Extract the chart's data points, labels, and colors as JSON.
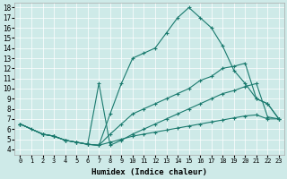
{
  "xlabel": "Humidex (Indice chaleur)",
  "bg_color": "#ceeae8",
  "line_color": "#1a7a6e",
  "xlim": [
    -0.5,
    23.5
  ],
  "ylim": [
    3.5,
    18.5
  ],
  "xticks": [
    0,
    1,
    2,
    3,
    4,
    5,
    6,
    7,
    8,
    9,
    10,
    11,
    12,
    13,
    14,
    15,
    16,
    17,
    18,
    19,
    20,
    21,
    22,
    23
  ],
  "yticks": [
    4,
    5,
    6,
    7,
    8,
    9,
    10,
    11,
    12,
    13,
    14,
    15,
    16,
    17,
    18
  ],
  "lines": [
    {
      "x": [
        0,
        1,
        2,
        3,
        4,
        5,
        6,
        7,
        8,
        9,
        10,
        11,
        12,
        13,
        14,
        15,
        16,
        17,
        18,
        19,
        20,
        21,
        22,
        23
      ],
      "y": [
        6.5,
        6.0,
        5.5,
        5.3,
        4.9,
        4.7,
        4.5,
        4.4,
        7.5,
        10.5,
        13.0,
        13.5,
        14.0,
        15.5,
        17.0,
        18.0,
        17.0,
        16.0,
        14.2,
        11.8,
        10.5,
        9.0,
        8.5,
        7.0
      ]
    },
    {
      "x": [
        0,
        2,
        3,
        4,
        5,
        6,
        7,
        8,
        9,
        10,
        11,
        12,
        13,
        14,
        15,
        16,
        17,
        18,
        19,
        20,
        21,
        22,
        23
      ],
      "y": [
        6.5,
        5.5,
        5.3,
        4.9,
        4.7,
        4.5,
        10.5,
        4.4,
        4.9,
        5.5,
        6.0,
        6.5,
        7.0,
        7.5,
        8.0,
        8.5,
        9.0,
        9.5,
        9.8,
        10.2,
        10.5,
        7.2,
        7.0
      ]
    },
    {
      "x": [
        0,
        2,
        3,
        4,
        5,
        6,
        7,
        8,
        9,
        10,
        11,
        12,
        13,
        14,
        15,
        16,
        17,
        18,
        19,
        20,
        21,
        22,
        23
      ],
      "y": [
        6.5,
        5.5,
        5.3,
        4.9,
        4.7,
        4.5,
        4.4,
        5.5,
        6.5,
        7.5,
        8.0,
        8.5,
        9.0,
        9.5,
        10.0,
        10.8,
        11.2,
        12.0,
        12.2,
        12.5,
        9.0,
        8.5,
        7.0
      ]
    },
    {
      "x": [
        0,
        2,
        3,
        4,
        5,
        6,
        7,
        8,
        9,
        10,
        11,
        12,
        13,
        14,
        15,
        16,
        17,
        18,
        19,
        20,
        21,
        22,
        23
      ],
      "y": [
        6.5,
        5.5,
        5.3,
        4.9,
        4.7,
        4.5,
        4.4,
        4.7,
        5.0,
        5.3,
        5.5,
        5.7,
        5.9,
        6.1,
        6.3,
        6.5,
        6.7,
        6.9,
        7.1,
        7.3,
        7.4,
        7.0,
        7.0
      ]
    }
  ]
}
